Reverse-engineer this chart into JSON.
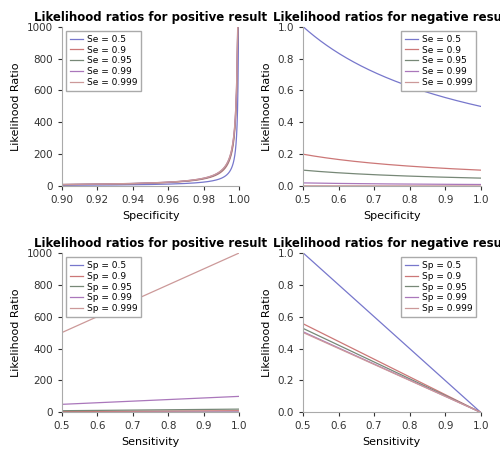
{
  "se_values": [
    0.5,
    0.9,
    0.95,
    0.99,
    0.999
  ],
  "sp_values": [
    0.5,
    0.9,
    0.95,
    0.99,
    0.999
  ],
  "top_left": {
    "title": "Likelihood ratios for positive result",
    "xlabel": "Specificity",
    "ylabel": "Likelihood Ratio",
    "xlim": [
      0.9,
      1.0
    ],
    "ylim": [
      0,
      1000
    ],
    "x_ticks": [
      0.9,
      0.92,
      0.94,
      0.96,
      0.98,
      1.0
    ],
    "y_ticks": [
      0,
      200,
      400,
      600,
      800,
      1000
    ]
  },
  "top_right": {
    "title": "Likelihood ratios for negative result",
    "xlabel": "Specificity",
    "ylabel": "Likelihood Ratio",
    "xlim": [
      0.5,
      1.0
    ],
    "ylim": [
      0.0,
      1.0
    ],
    "x_ticks": [
      0.5,
      0.6,
      0.7,
      0.8,
      0.9,
      1.0
    ],
    "y_ticks": [
      0.0,
      0.2,
      0.4,
      0.6,
      0.8,
      1.0
    ]
  },
  "bottom_left": {
    "title": "Likelihood ratios for positive result",
    "xlabel": "Sensitivity",
    "ylabel": "Likelihood Ratio",
    "xlim": [
      0.5,
      1.0
    ],
    "ylim": [
      0,
      1000
    ],
    "x_ticks": [
      0.5,
      0.6,
      0.7,
      0.8,
      0.9,
      1.0
    ],
    "y_ticks": [
      0,
      200,
      400,
      600,
      800,
      1000
    ]
  },
  "bottom_right": {
    "title": "Likelihood ratios for negative result",
    "xlabel": "Sensitivity",
    "ylabel": "Likelihood Ratio",
    "xlim": [
      0.5,
      1.0
    ],
    "ylim": [
      0.0,
      1.0
    ],
    "x_ticks": [
      0.5,
      0.6,
      0.7,
      0.8,
      0.9,
      1.0
    ],
    "y_ticks": [
      0.0,
      0.2,
      0.4,
      0.6,
      0.8,
      1.0
    ]
  },
  "line_colors_se": [
    "#7777cc",
    "#cc7777",
    "#778877",
    "#aa77bb",
    "#cc9999"
  ],
  "line_colors_sp": [
    "#7777cc",
    "#cc7777",
    "#778877",
    "#aa77bb",
    "#cc9999"
  ],
  "legend_se_labels": [
    "Se = 0.5",
    "Se = 0.9",
    "Se = 0.95",
    "Se = 0.99",
    "Se = 0.999"
  ],
  "legend_sp_labels": [
    "Sp = 0.5",
    "Sp = 0.9",
    "Sp = 0.95",
    "Sp = 0.99",
    "Sp = 0.999"
  ],
  "background_color": "#ffffff",
  "title_fontsize": 8.5,
  "label_fontsize": 8,
  "legend_fontsize": 6.5,
  "tick_fontsize": 7.5
}
